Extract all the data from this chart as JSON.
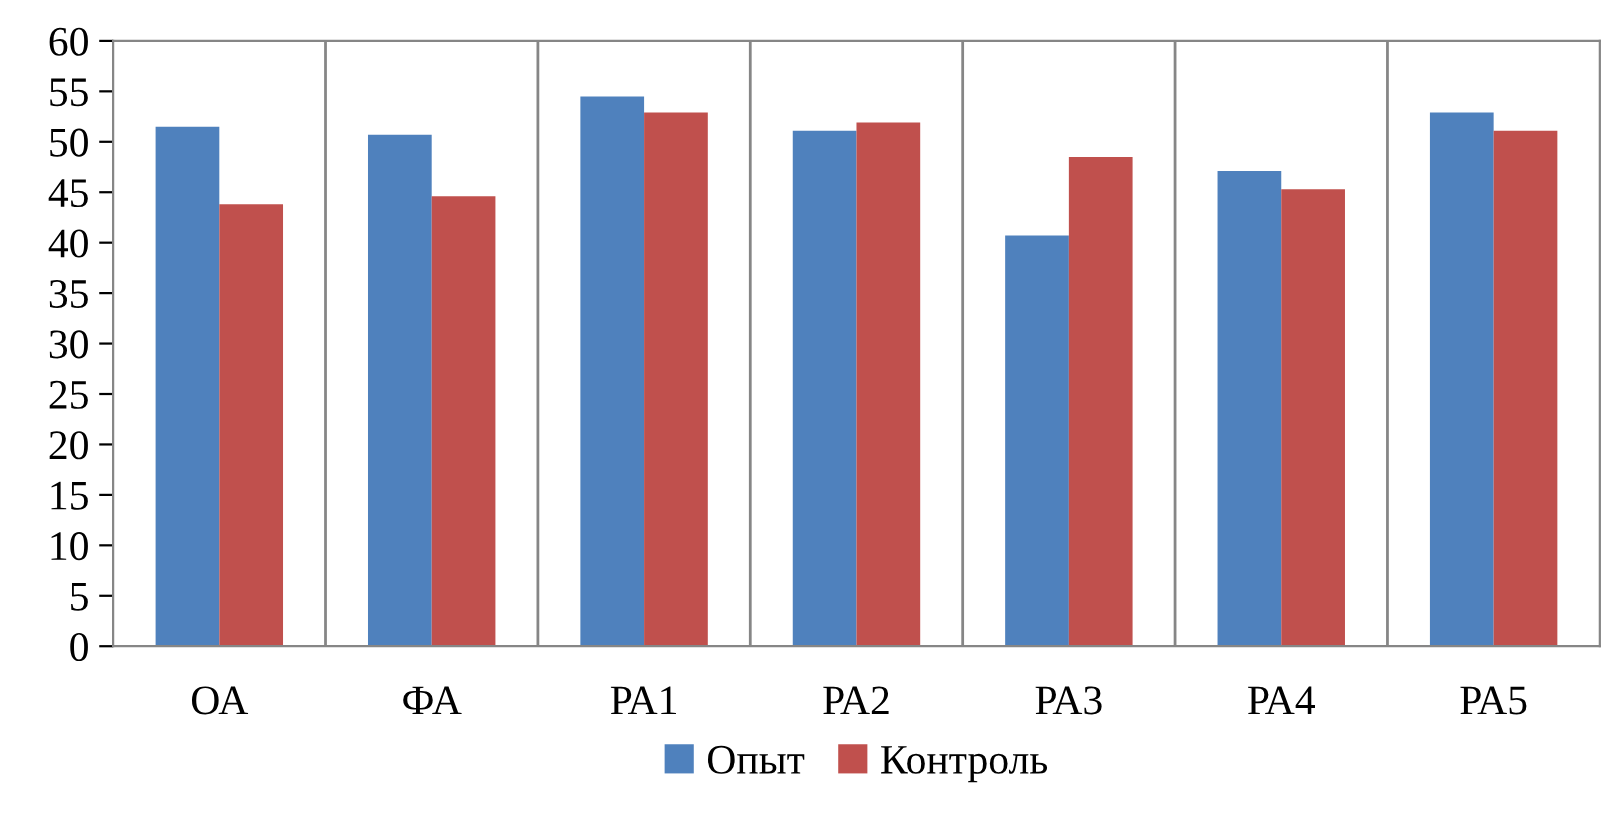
{
  "chart_data": {
    "type": "bar",
    "categories": [
      "ОА",
      "ФА",
      "РА1",
      "РА2",
      "РА3",
      "РА4",
      "РА5"
    ],
    "series": [
      {
        "name": "Опыт",
        "color": "#4f81bd",
        "values": [
          51.5,
          50.7,
          54.5,
          51.1,
          40.7,
          47.1,
          52.9
        ]
      },
      {
        "name": "Контроль",
        "color": "#c0504d",
        "values": [
          43.8,
          44.6,
          52.9,
          51.9,
          48.5,
          45.3,
          51.1
        ]
      }
    ],
    "ylim": [
      0,
      60
    ],
    "yticks": [
      0,
      5,
      10,
      15,
      20,
      25,
      30,
      35,
      40,
      45,
      50,
      55,
      60
    ],
    "grid": "x",
    "legend": "bottom"
  }
}
